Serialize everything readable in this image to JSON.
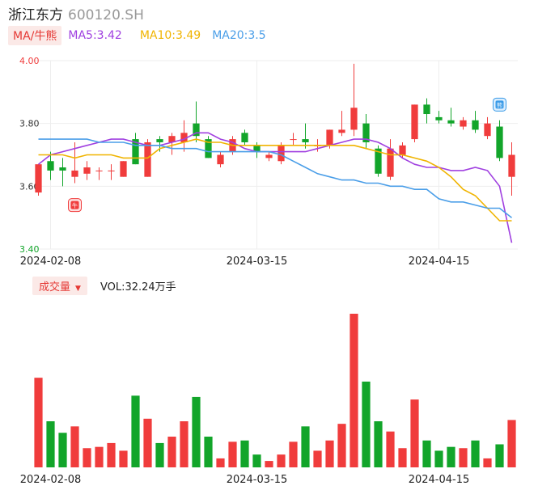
{
  "header": {
    "name": "浙江东方",
    "code": "600120.SH"
  },
  "ma": {
    "toggle_label": "MA/牛熊",
    "items": [
      {
        "label": "MA5:3.42",
        "color": "#a040e0"
      },
      {
        "label": "MA10:3.49",
        "color": "#f0b400"
      },
      {
        "label": "MA20:3.5",
        "color": "#4a9ee8"
      }
    ]
  },
  "volume": {
    "toggle_label": "成交量",
    "label": "VOL:32.24万手"
  },
  "markers": {
    "bull": "牛",
    "bear": "熊"
  },
  "colors": {
    "up": "#f03c3c",
    "down": "#12a52a",
    "grid": "#eeeeee"
  },
  "chart_data": {
    "type": "candlestick",
    "y_axis": {
      "ticks": [
        4.0,
        3.8,
        3.6,
        3.4
      ],
      "range": [
        3.4,
        4.0
      ]
    },
    "x_ticks": [
      {
        "index": 1,
        "label": "2024-02-08"
      },
      {
        "index": 18,
        "label": "2024-03-15"
      },
      {
        "index": 33,
        "label": "2024-04-15"
      }
    ],
    "candles": [
      {
        "o": 3.58,
        "c": 3.67,
        "h": 3.67,
        "l": 3.57,
        "v": 70
      },
      {
        "o": 3.68,
        "c": 3.65,
        "h": 3.71,
        "l": 3.62,
        "v": 36
      },
      {
        "o": 3.66,
        "c": 3.65,
        "h": 3.69,
        "l": 3.6,
        "v": 27
      },
      {
        "o": 3.63,
        "c": 3.65,
        "h": 3.74,
        "l": 3.61,
        "v": 32
      },
      {
        "o": 3.64,
        "c": 3.66,
        "h": 3.68,
        "l": 3.62,
        "v": 15
      },
      {
        "o": 3.65,
        "c": 3.65,
        "h": 3.66,
        "l": 3.62,
        "v": 16
      },
      {
        "o": 3.65,
        "c": 3.65,
        "h": 3.67,
        "l": 3.62,
        "v": 19
      },
      {
        "o": 3.63,
        "c": 3.68,
        "h": 3.68,
        "l": 3.63,
        "v": 13
      },
      {
        "o": 3.75,
        "c": 3.67,
        "h": 3.77,
        "l": 3.67,
        "v": 56
      },
      {
        "o": 3.63,
        "c": 3.74,
        "h": 3.75,
        "l": 3.63,
        "v": 38
      },
      {
        "o": 3.75,
        "c": 3.74,
        "h": 3.76,
        "l": 3.71,
        "v": 19
      },
      {
        "o": 3.74,
        "c": 3.76,
        "h": 3.77,
        "l": 3.7,
        "v": 24
      },
      {
        "o": 3.74,
        "c": 3.77,
        "h": 3.81,
        "l": 3.71,
        "v": 36
      },
      {
        "o": 3.8,
        "c": 3.76,
        "h": 3.87,
        "l": 3.74,
        "v": 55
      },
      {
        "o": 3.75,
        "c": 3.69,
        "h": 3.76,
        "l": 3.69,
        "v": 24
      },
      {
        "o": 3.67,
        "c": 3.7,
        "h": 3.71,
        "l": 3.66,
        "v": 7
      },
      {
        "o": 3.71,
        "c": 3.75,
        "h": 3.76,
        "l": 3.7,
        "v": 20
      },
      {
        "o": 3.77,
        "c": 3.74,
        "h": 3.78,
        "l": 3.73,
        "v": 21
      },
      {
        "o": 3.73,
        "c": 3.71,
        "h": 3.74,
        "l": 3.69,
        "v": 10
      },
      {
        "o": 3.69,
        "c": 3.7,
        "h": 3.71,
        "l": 3.68,
        "v": 5
      },
      {
        "o": 3.68,
        "c": 3.73,
        "h": 3.74,
        "l": 3.67,
        "v": 10
      },
      {
        "o": 3.75,
        "c": 3.75,
        "h": 3.77,
        "l": 3.73,
        "v": 20
      },
      {
        "o": 3.75,
        "c": 3.74,
        "h": 3.8,
        "l": 3.72,
        "v": 32
      },
      {
        "o": 3.73,
        "c": 3.73,
        "h": 3.75,
        "l": 3.71,
        "v": 13
      },
      {
        "o": 3.73,
        "c": 3.78,
        "h": 3.78,
        "l": 3.72,
        "v": 21
      },
      {
        "o": 3.77,
        "c": 3.78,
        "h": 3.84,
        "l": 3.76,
        "v": 34
      },
      {
        "o": 3.78,
        "c": 3.85,
        "h": 3.99,
        "l": 3.76,
        "v": 120
      },
      {
        "o": 3.8,
        "c": 3.74,
        "h": 3.83,
        "l": 3.72,
        "v": 67
      },
      {
        "o": 3.72,
        "c": 3.64,
        "h": 3.73,
        "l": 3.63,
        "v": 36
      },
      {
        "o": 3.63,
        "c": 3.72,
        "h": 3.75,
        "l": 3.62,
        "v": 28
      },
      {
        "o": 3.7,
        "c": 3.73,
        "h": 3.74,
        "l": 3.69,
        "v": 15
      },
      {
        "o": 3.75,
        "c": 3.86,
        "h": 3.86,
        "l": 3.74,
        "v": 53
      },
      {
        "o": 3.86,
        "c": 3.83,
        "h": 3.88,
        "l": 3.8,
        "v": 21
      },
      {
        "o": 3.82,
        "c": 3.81,
        "h": 3.84,
        "l": 3.8,
        "v": 13
      },
      {
        "o": 3.81,
        "c": 3.8,
        "h": 3.85,
        "l": 3.79,
        "v": 16
      },
      {
        "o": 3.79,
        "c": 3.81,
        "h": 3.82,
        "l": 3.78,
        "v": 15
      },
      {
        "o": 3.81,
        "c": 3.78,
        "h": 3.84,
        "l": 3.77,
        "v": 21
      },
      {
        "o": 3.76,
        "c": 3.8,
        "h": 3.82,
        "l": 3.75,
        "v": 7
      },
      {
        "o": 3.79,
        "c": 3.69,
        "h": 3.81,
        "l": 3.68,
        "v": 18
      },
      {
        "o": 3.63,
        "c": 3.7,
        "h": 3.74,
        "l": 3.57,
        "v": 37
      }
    ],
    "ma5": [
      3.67,
      3.7,
      3.71,
      3.72,
      3.73,
      3.74,
      3.75,
      3.75,
      3.74,
      3.73,
      3.73,
      3.74,
      3.75,
      3.77,
      3.77,
      3.75,
      3.74,
      3.72,
      3.71,
      3.71,
      3.71,
      3.71,
      3.71,
      3.72,
      3.73,
      3.74,
      3.75,
      3.75,
      3.74,
      3.72,
      3.69,
      3.67,
      3.66,
      3.66,
      3.65,
      3.65,
      3.66,
      3.65,
      3.6,
      3.42
    ],
    "ma10": [
      3.7,
      3.7,
      3.7,
      3.69,
      3.7,
      3.7,
      3.7,
      3.69,
      3.69,
      3.69,
      3.72,
      3.73,
      3.74,
      3.75,
      3.74,
      3.74,
      3.73,
      3.73,
      3.73,
      3.73,
      3.73,
      3.73,
      3.73,
      3.73,
      3.73,
      3.73,
      3.73,
      3.72,
      3.71,
      3.7,
      3.7,
      3.69,
      3.68,
      3.66,
      3.63,
      3.59,
      3.57,
      3.53,
      3.49,
      3.49
    ],
    "ma20": [
      3.75,
      3.75,
      3.75,
      3.75,
      3.75,
      3.74,
      3.74,
      3.74,
      3.73,
      3.73,
      3.73,
      3.72,
      3.72,
      3.72,
      3.71,
      3.71,
      3.71,
      3.71,
      3.71,
      3.71,
      3.7,
      3.68,
      3.66,
      3.64,
      3.63,
      3.62,
      3.62,
      3.61,
      3.61,
      3.6,
      3.6,
      3.59,
      3.59,
      3.56,
      3.55,
      3.55,
      3.54,
      3.53,
      3.53,
      3.5
    ],
    "markers": [
      {
        "type": "bull",
        "index": 3,
        "price": 3.54
      },
      {
        "type": "bear",
        "index": 38,
        "price": 3.86
      }
    ]
  }
}
